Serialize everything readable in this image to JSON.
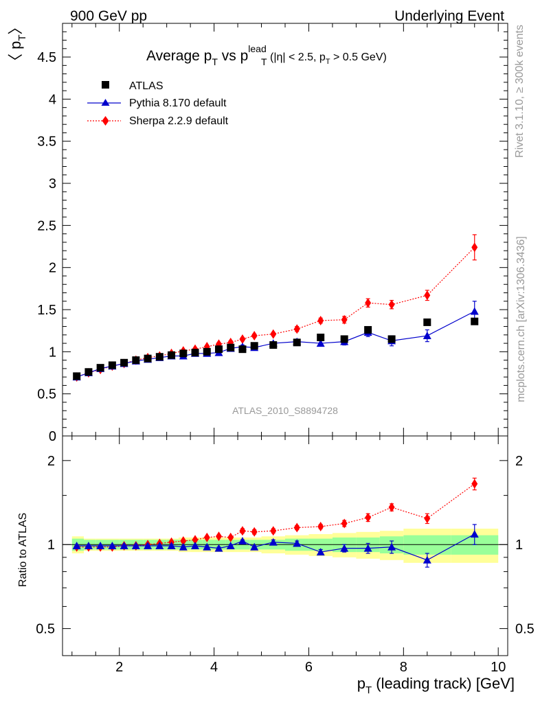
{
  "header": {
    "left": "900 GeV pp",
    "right": "Underlying Event"
  },
  "side_labels": {
    "rivet": "Rivet 3.1.10, ≥ 300k events",
    "mcplots": "mcplots.cern.ch [arXiv:1306.3436]"
  },
  "colors": {
    "atlas": "#000000",
    "pythia": "#0000cc",
    "sherpa": "#ff0000",
    "band_inner": "#99ff99",
    "band_outer": "#ffff99",
    "watermark": "#999999"
  },
  "chart_data": [
    {
      "type": "scatter",
      "panel": "main",
      "title_parts": {
        "main": "Average p",
        "sub1": "T",
        "mid": " vs p",
        "sup": "lead",
        "sub2": "T",
        "cut_a": " (|η| < 2.5, p",
        "cut_sub": "T",
        "cut_b": " > 0.5 GeV)"
      },
      "ylabel": {
        "left": "〈 p",
        "sub": "T",
        "right": "〉"
      },
      "watermark": "ATLAS_2010_S8894728",
      "xlim": [
        0.8,
        10.2
      ],
      "ylim": [
        0,
        4.9
      ],
      "x_ticks": [
        2,
        4,
        6,
        8,
        10
      ],
      "x_tick_labels": [
        "2",
        "4",
        "6",
        "8",
        "10"
      ],
      "y_ticks": [
        0,
        0.5,
        1,
        1.5,
        2,
        2.5,
        3,
        3.5,
        4,
        4.5
      ],
      "y_tick_labels": [
        "0",
        "0.5",
        "1",
        "1.5",
        "2",
        "2.5",
        "3",
        "3.5",
        "4",
        "4.5"
      ],
      "legend_position": "top-left",
      "series": [
        {
          "name": "ATLAS",
          "marker": "square",
          "x": [
            1.1,
            1.35,
            1.6,
            1.85,
            2.1,
            2.35,
            2.6,
            2.85,
            3.1,
            3.35,
            3.6,
            3.85,
            4.1,
            4.35,
            4.6,
            4.85,
            5.25,
            5.75,
            6.25,
            6.75,
            7.25,
            7.75,
            8.5,
            9.5
          ],
          "y": [
            0.71,
            0.76,
            0.81,
            0.84,
            0.87,
            0.9,
            0.92,
            0.94,
            0.96,
            0.98,
            0.99,
            1.0,
            1.03,
            1.05,
            1.03,
            1.07,
            1.08,
            1.11,
            1.17,
            1.15,
            1.26,
            1.15,
            1.35,
            1.36
          ]
        },
        {
          "name": "Pythia 8.170 default",
          "marker": "triangle",
          "x": [
            1.1,
            1.35,
            1.6,
            1.85,
            2.1,
            2.35,
            2.6,
            2.85,
            3.1,
            3.35,
            3.6,
            3.85,
            4.1,
            4.35,
            4.6,
            4.85,
            5.25,
            5.75,
            6.25,
            6.75,
            7.25,
            7.75,
            8.5,
            9.5
          ],
          "y": [
            0.7,
            0.75,
            0.8,
            0.83,
            0.86,
            0.89,
            0.91,
            0.93,
            0.95,
            0.95,
            0.98,
            0.98,
            0.99,
            1.04,
            1.06,
            1.05,
            1.1,
            1.12,
            1.1,
            1.12,
            1.23,
            1.13,
            1.19,
            1.48
          ],
          "err": [
            0.01,
            0.01,
            0.01,
            0.01,
            0.01,
            0.01,
            0.01,
            0.01,
            0.01,
            0.01,
            0.01,
            0.01,
            0.01,
            0.02,
            0.02,
            0.02,
            0.02,
            0.03,
            0.03,
            0.04,
            0.05,
            0.06,
            0.07,
            0.12
          ]
        },
        {
          "name": "Sherpa 2.2.9 default",
          "marker": "diamond",
          "x": [
            1.1,
            1.35,
            1.6,
            1.85,
            2.1,
            2.35,
            2.6,
            2.85,
            3.1,
            3.35,
            3.6,
            3.85,
            4.1,
            4.35,
            4.6,
            4.85,
            5.25,
            5.75,
            6.25,
            6.75,
            7.25,
            7.75,
            8.5,
            9.5
          ],
          "y": [
            0.7,
            0.75,
            0.79,
            0.83,
            0.86,
            0.9,
            0.93,
            0.95,
            0.98,
            1.01,
            1.03,
            1.06,
            1.09,
            1.11,
            1.15,
            1.19,
            1.21,
            1.27,
            1.37,
            1.38,
            1.58,
            1.56,
            1.67,
            2.24
          ],
          "err": [
            0.01,
            0.01,
            0.01,
            0.01,
            0.01,
            0.01,
            0.01,
            0.01,
            0.01,
            0.01,
            0.01,
            0.01,
            0.02,
            0.02,
            0.02,
            0.02,
            0.02,
            0.03,
            0.03,
            0.04,
            0.05,
            0.05,
            0.06,
            0.15
          ]
        }
      ]
    },
    {
      "type": "scatter",
      "panel": "ratio",
      "ylabel": "Ratio to ATLAS",
      "xlabel": {
        "left": "p",
        "sub": "T",
        "right": " (leading track) [GeV]"
      },
      "xlim": [
        0.8,
        10.2
      ],
      "ylim": [
        0.4,
        2.45
      ],
      "y_log": true,
      "y_ticks": [
        0.5,
        1,
        2
      ],
      "y_tick_labels": [
        "0.5",
        "1",
        "2"
      ],
      "reference_line": 1,
      "bands": {
        "x_edges": [
          1.0,
          1.25,
          1.5,
          1.75,
          2.0,
          2.25,
          2.5,
          2.75,
          3.0,
          3.25,
          3.5,
          3.75,
          4.0,
          4.25,
          4.5,
          4.75,
          5.0,
          5.5,
          6.0,
          6.5,
          7.0,
          7.5,
          8.0,
          9.0,
          10.0
        ],
        "inner_lo": [
          0.95,
          0.96,
          0.96,
          0.96,
          0.96,
          0.96,
          0.96,
          0.96,
          0.96,
          0.96,
          0.96,
          0.96,
          0.96,
          0.96,
          0.96,
          0.96,
          0.96,
          0.95,
          0.95,
          0.94,
          0.94,
          0.93,
          0.92,
          0.92
        ],
        "inner_hi": [
          1.05,
          1.04,
          1.04,
          1.04,
          1.04,
          1.04,
          1.04,
          1.04,
          1.04,
          1.04,
          1.04,
          1.04,
          1.04,
          1.04,
          1.04,
          1.04,
          1.04,
          1.05,
          1.05,
          1.06,
          1.06,
          1.07,
          1.08,
          1.08
        ],
        "outer_lo": [
          0.93,
          0.95,
          0.95,
          0.95,
          0.95,
          0.95,
          0.95,
          0.95,
          0.95,
          0.94,
          0.94,
          0.94,
          0.94,
          0.94,
          0.94,
          0.94,
          0.93,
          0.92,
          0.91,
          0.9,
          0.89,
          0.88,
          0.86,
          0.86
        ],
        "outer_hi": [
          1.07,
          1.05,
          1.05,
          1.05,
          1.05,
          1.05,
          1.05,
          1.05,
          1.05,
          1.06,
          1.06,
          1.06,
          1.06,
          1.06,
          1.06,
          1.06,
          1.07,
          1.08,
          1.09,
          1.1,
          1.11,
          1.12,
          1.14,
          1.14
        ]
      },
      "series": [
        {
          "name": "Pythia 8.170 default",
          "marker": "triangle",
          "x": [
            1.1,
            1.35,
            1.6,
            1.85,
            2.1,
            2.35,
            2.6,
            2.85,
            3.1,
            3.35,
            3.6,
            3.85,
            4.1,
            4.35,
            4.6,
            4.85,
            5.25,
            5.75,
            6.25,
            6.75,
            7.25,
            7.75,
            8.5,
            9.5
          ],
          "y": [
            0.99,
            0.99,
            0.99,
            0.99,
            0.99,
            0.99,
            0.99,
            0.99,
            0.99,
            0.98,
            0.99,
            0.98,
            0.97,
            0.99,
            1.03,
            0.98,
            1.02,
            1.01,
            0.94,
            0.97,
            0.97,
            0.98,
            0.88,
            1.09
          ],
          "err": [
            0.01,
            0.01,
            0.01,
            0.01,
            0.01,
            0.01,
            0.01,
            0.01,
            0.01,
            0.01,
            0.01,
            0.01,
            0.01,
            0.01,
            0.01,
            0.01,
            0.02,
            0.02,
            0.02,
            0.03,
            0.04,
            0.05,
            0.05,
            0.09
          ]
        },
        {
          "name": "Sherpa 2.2.9 default",
          "marker": "diamond",
          "x": [
            1.1,
            1.35,
            1.6,
            1.85,
            2.1,
            2.35,
            2.6,
            2.85,
            3.1,
            3.35,
            3.6,
            3.85,
            4.1,
            4.35,
            4.6,
            4.85,
            5.25,
            5.75,
            6.25,
            6.75,
            7.25,
            7.75,
            8.5,
            9.5
          ],
          "y": [
            0.98,
            0.98,
            0.98,
            0.98,
            0.99,
            0.99,
            1.0,
            1.01,
            1.02,
            1.03,
            1.04,
            1.06,
            1.07,
            1.06,
            1.12,
            1.11,
            1.12,
            1.15,
            1.16,
            1.19,
            1.25,
            1.36,
            1.24,
            1.65
          ],
          "err": [
            0.01,
            0.01,
            0.01,
            0.01,
            0.01,
            0.01,
            0.01,
            0.01,
            0.01,
            0.01,
            0.01,
            0.01,
            0.01,
            0.01,
            0.02,
            0.02,
            0.02,
            0.02,
            0.02,
            0.03,
            0.04,
            0.04,
            0.05,
            0.08
          ]
        }
      ]
    }
  ]
}
